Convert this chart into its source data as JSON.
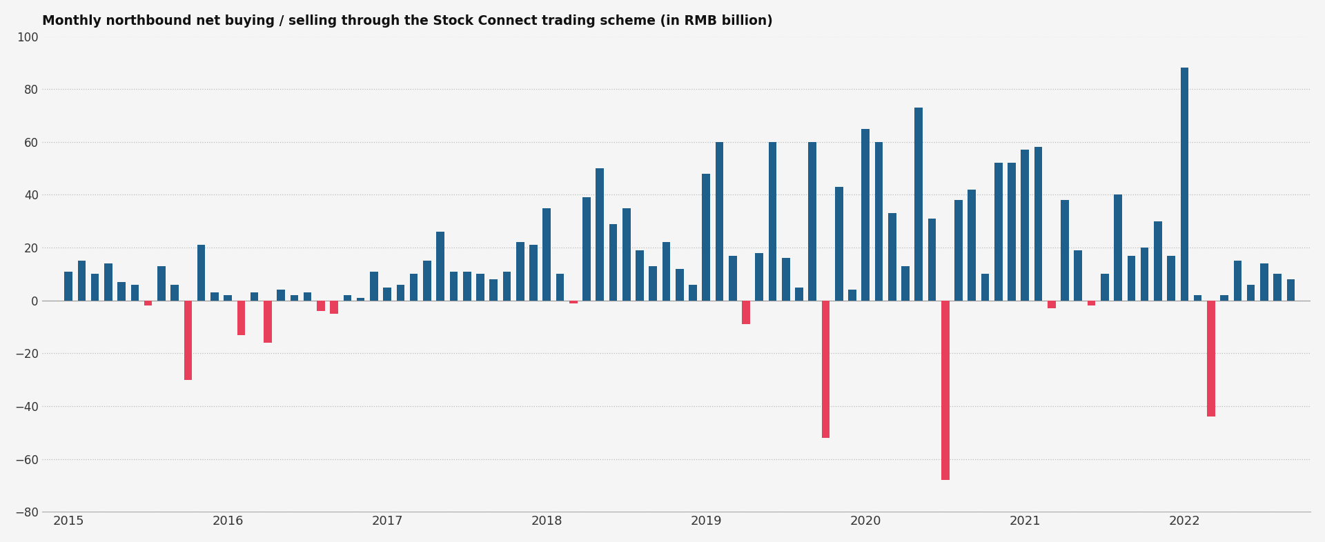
{
  "title": "Monthly northbound net buying / selling through the Stock Connect trading scheme (in RMB billion)",
  "title_fontsize": 13.5,
  "background_color": "#f5f5f5",
  "bar_color_positive": "#1f5f8b",
  "bar_color_negative": "#e8405a",
  "ylim": [
    -80,
    100
  ],
  "yticks": [
    -80,
    -60,
    -40,
    -20,
    0,
    20,
    40,
    60,
    80,
    100
  ],
  "grid_color": "#bbbbbb",
  "values": [
    11,
    15,
    10,
    14,
    7,
    6,
    -2,
    13,
    6,
    -30,
    21,
    3,
    2,
    -13,
    3,
    -16,
    4,
    2,
    3,
    -4,
    -5,
    2,
    1,
    11,
    5,
    6,
    10,
    15,
    26,
    11,
    11,
    10,
    8,
    11,
    22,
    21,
    35,
    10,
    -1,
    39,
    50,
    29,
    35,
    19,
    13,
    22,
    12,
    6,
    48,
    60,
    17,
    -9,
    18,
    60,
    16,
    5,
    60,
    -52,
    43,
    4,
    65,
    60,
    33,
    13,
    73,
    31,
    -68,
    38,
    42,
    10,
    52,
    52,
    57,
    58,
    -3,
    38,
    19,
    -2,
    10,
    40,
    17,
    20,
    30,
    17,
    88,
    2,
    -44,
    2,
    15,
    6,
    14,
    10,
    8
  ],
  "x_year_labels": [
    "2015",
    "2016",
    "2017",
    "2018",
    "2019",
    "2020",
    "2021",
    "2022"
  ],
  "x_year_positions": [
    0,
    12,
    24,
    36,
    48,
    60,
    72,
    84
  ]
}
